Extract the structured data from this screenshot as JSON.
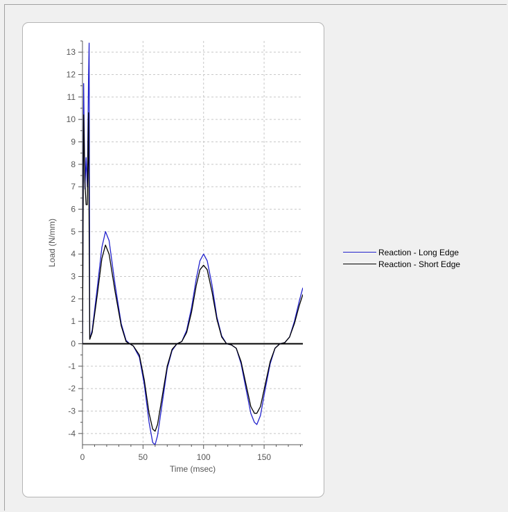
{
  "chart_data": {
    "type": "line",
    "title": "",
    "xlabel": "Time (msec)",
    "ylabel": "Load (N/mm)",
    "xlim": [
      0,
      182
    ],
    "ylim": [
      -4.5,
      13.5
    ],
    "xticks": [
      0,
      50,
      100,
      150
    ],
    "yticks": [
      -4,
      -3,
      -2,
      -1,
      0,
      1,
      2,
      3,
      4,
      5,
      6,
      7,
      8,
      9,
      10,
      11,
      12,
      13
    ],
    "grid": true,
    "legend_position": "right",
    "series": [
      {
        "name": "Reaction - Long Edge",
        "color": "#2222cc",
        "points": [
          [
            0,
            0
          ],
          [
            1,
            11.6
          ],
          [
            2,
            6.9
          ],
          [
            3,
            8.3
          ],
          [
            4,
            7.0
          ],
          [
            5,
            11.8
          ],
          [
            5.5,
            13.4
          ],
          [
            6,
            0.2
          ],
          [
            8,
            0.6
          ],
          [
            12,
            2.4
          ],
          [
            16,
            4.3
          ],
          [
            19,
            5.0
          ],
          [
            22,
            4.6
          ],
          [
            27,
            2.6
          ],
          [
            32,
            0.9
          ],
          [
            36,
            0.15
          ],
          [
            39,
            0
          ],
          [
            42,
            -0.1
          ],
          [
            47,
            -0.6
          ],
          [
            51,
            -1.8
          ],
          [
            55,
            -3.5
          ],
          [
            58,
            -4.4
          ],
          [
            60,
            -4.5
          ],
          [
            62,
            -4.1
          ],
          [
            66,
            -2.6
          ],
          [
            70,
            -1.1
          ],
          [
            74,
            -0.3
          ],
          [
            78,
            0
          ],
          [
            82,
            0.1
          ],
          [
            86,
            0.6
          ],
          [
            90,
            1.6
          ],
          [
            94,
            2.9
          ],
          [
            97,
            3.7
          ],
          [
            100,
            4.0
          ],
          [
            103,
            3.7
          ],
          [
            107,
            2.6
          ],
          [
            111,
            1.2
          ],
          [
            115,
            0.35
          ],
          [
            119,
            0
          ],
          [
            123,
            -0.05
          ],
          [
            127,
            -0.2
          ],
          [
            131,
            -0.9
          ],
          [
            135,
            -2.0
          ],
          [
            139,
            -3.1
          ],
          [
            142,
            -3.5
          ],
          [
            144,
            -3.6
          ],
          [
            147,
            -3.2
          ],
          [
            151,
            -2.0
          ],
          [
            155,
            -0.9
          ],
          [
            159,
            -0.2
          ],
          [
            163,
            0
          ],
          [
            167,
            0.05
          ],
          [
            171,
            0.3
          ],
          [
            175,
            1.0
          ],
          [
            179,
            1.9
          ],
          [
            182,
            2.5
          ]
        ]
      },
      {
        "name": "Reaction - Short Edge",
        "color": "#000000",
        "points": [
          [
            0,
            0
          ],
          [
            1,
            10.2
          ],
          [
            2,
            7.2
          ],
          [
            3,
            6.2
          ],
          [
            4,
            6.2
          ],
          [
            5,
            10.3
          ],
          [
            6,
            0.2
          ],
          [
            8,
            0.5
          ],
          [
            12,
            2.1
          ],
          [
            16,
            3.8
          ],
          [
            19,
            4.4
          ],
          [
            22,
            4.0
          ],
          [
            27,
            2.3
          ],
          [
            32,
            0.8
          ],
          [
            36,
            0.1
          ],
          [
            39,
            0
          ],
          [
            42,
            -0.1
          ],
          [
            47,
            -0.5
          ],
          [
            51,
            -1.6
          ],
          [
            55,
            -3.1
          ],
          [
            58,
            -3.8
          ],
          [
            60,
            -3.9
          ],
          [
            62,
            -3.6
          ],
          [
            66,
            -2.3
          ],
          [
            70,
            -1.0
          ],
          [
            74,
            -0.25
          ],
          [
            78,
            0
          ],
          [
            82,
            0.1
          ],
          [
            86,
            0.5
          ],
          [
            90,
            1.4
          ],
          [
            94,
            2.6
          ],
          [
            97,
            3.3
          ],
          [
            100,
            3.5
          ],
          [
            103,
            3.3
          ],
          [
            107,
            2.3
          ],
          [
            111,
            1.1
          ],
          [
            115,
            0.3
          ],
          [
            119,
            0
          ],
          [
            123,
            -0.05
          ],
          [
            127,
            -0.2
          ],
          [
            131,
            -0.8
          ],
          [
            135,
            -1.8
          ],
          [
            139,
            -2.8
          ],
          [
            142,
            -3.1
          ],
          [
            144,
            -3.1
          ],
          [
            147,
            -2.8
          ],
          [
            151,
            -1.8
          ],
          [
            155,
            -0.8
          ],
          [
            159,
            -0.2
          ],
          [
            163,
            0
          ],
          [
            167,
            0.05
          ],
          [
            171,
            0.3
          ],
          [
            175,
            0.9
          ],
          [
            179,
            1.7
          ],
          [
            182,
            2.2
          ]
        ]
      }
    ]
  }
}
